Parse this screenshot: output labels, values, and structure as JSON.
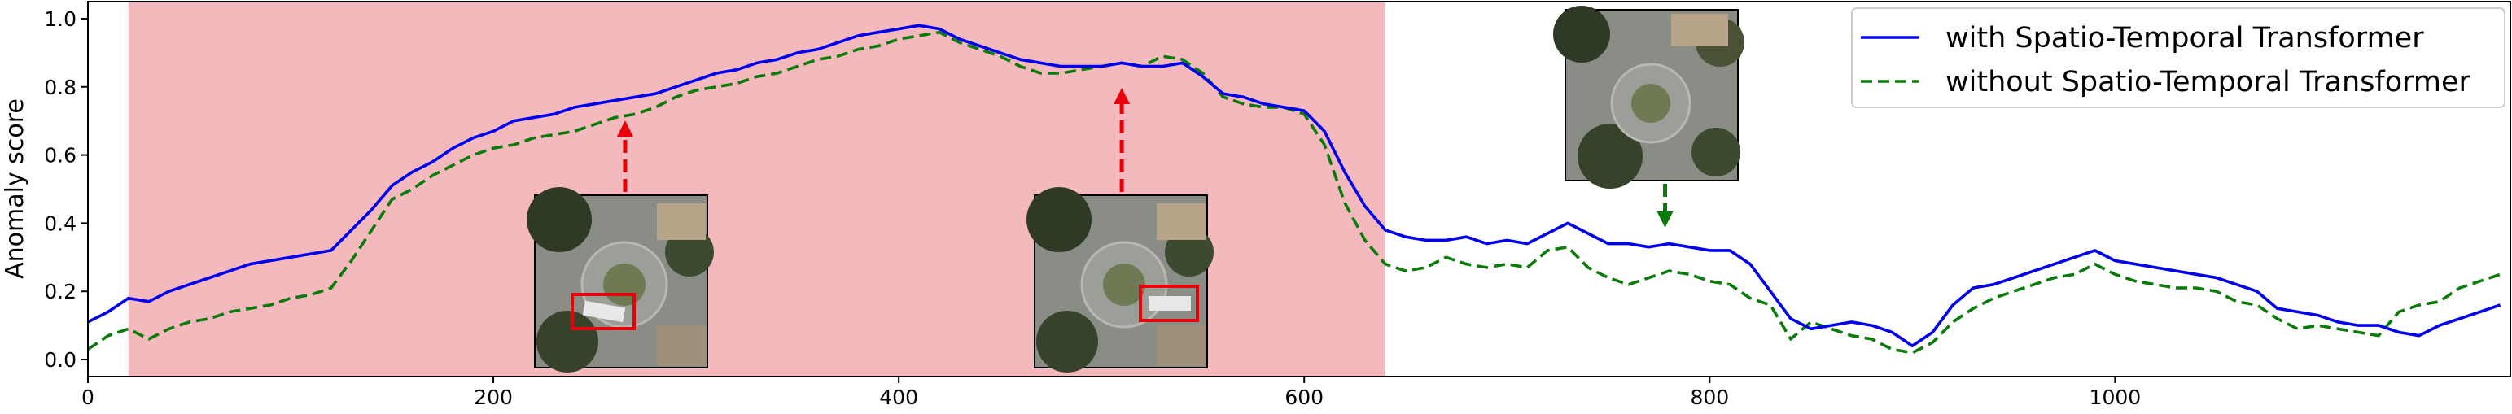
{
  "chart_data": {
    "type": "line",
    "title": "",
    "xlabel": "",
    "ylabel": "Anomaly score",
    "xlim": [
      0,
      1195
    ],
    "ylim": [
      -0.05,
      1.05
    ],
    "xticks": [
      0,
      200,
      400,
      600,
      800,
      1000
    ],
    "yticks": [
      0.0,
      0.2,
      0.4,
      0.6,
      0.8,
      1.0
    ],
    "xtick_labels": [
      "0",
      "200",
      "400",
      "600",
      "800",
      "1000"
    ],
    "ytick_labels": [
      "0.0",
      "0.2",
      "0.4",
      "0.6",
      "0.8",
      "1.0"
    ],
    "grid": false,
    "legend_position": "top-right",
    "anomaly_region": {
      "x_start": 20,
      "x_end": 640,
      "color": "#f4b9bd"
    },
    "series": [
      {
        "name": "with Spatio-Temporal Transformer",
        "color": "#0000ee",
        "style": "solid",
        "x": [
          0,
          10,
          20,
          30,
          40,
          50,
          60,
          70,
          80,
          90,
          100,
          110,
          120,
          130,
          140,
          150,
          160,
          170,
          180,
          190,
          200,
          210,
          220,
          230,
          240,
          250,
          260,
          270,
          280,
          290,
          300,
          310,
          320,
          330,
          340,
          350,
          360,
          370,
          380,
          390,
          400,
          410,
          420,
          430,
          440,
          450,
          460,
          470,
          480,
          490,
          500,
          510,
          520,
          530,
          540,
          550,
          560,
          570,
          580,
          590,
          600,
          610,
          620,
          630,
          640,
          650,
          660,
          670,
          680,
          690,
          700,
          710,
          720,
          730,
          740,
          750,
          760,
          770,
          780,
          790,
          800,
          810,
          820,
          830,
          840,
          850,
          860,
          870,
          880,
          890,
          900,
          910,
          920,
          930,
          940,
          950,
          960,
          970,
          980,
          990,
          1000,
          1010,
          1020,
          1030,
          1040,
          1050,
          1060,
          1070,
          1080,
          1090,
          1100,
          1110,
          1120,
          1130,
          1140,
          1150,
          1160,
          1170,
          1180,
          1190
        ],
        "values": [
          0.11,
          0.14,
          0.18,
          0.17,
          0.2,
          0.22,
          0.24,
          0.26,
          0.28,
          0.29,
          0.3,
          0.31,
          0.32,
          0.38,
          0.44,
          0.51,
          0.55,
          0.58,
          0.62,
          0.65,
          0.67,
          0.7,
          0.71,
          0.72,
          0.74,
          0.75,
          0.76,
          0.77,
          0.78,
          0.8,
          0.82,
          0.84,
          0.85,
          0.87,
          0.88,
          0.9,
          0.91,
          0.93,
          0.95,
          0.96,
          0.97,
          0.98,
          0.97,
          0.94,
          0.92,
          0.9,
          0.88,
          0.87,
          0.86,
          0.86,
          0.86,
          0.87,
          0.86,
          0.86,
          0.87,
          0.83,
          0.78,
          0.77,
          0.75,
          0.74,
          0.73,
          0.67,
          0.55,
          0.45,
          0.38,
          0.36,
          0.35,
          0.35,
          0.36,
          0.34,
          0.35,
          0.34,
          0.37,
          0.4,
          0.37,
          0.34,
          0.34,
          0.33,
          0.34,
          0.33,
          0.32,
          0.32,
          0.28,
          0.2,
          0.12,
          0.09,
          0.1,
          0.11,
          0.1,
          0.08,
          0.04,
          0.08,
          0.16,
          0.21,
          0.22,
          0.24,
          0.26,
          0.28,
          0.3,
          0.32,
          0.29,
          0.28,
          0.27,
          0.26,
          0.25,
          0.24,
          0.22,
          0.2,
          0.15,
          0.14,
          0.13,
          0.11,
          0.1,
          0.1,
          0.08,
          0.07,
          0.1,
          0.12,
          0.14,
          0.16
        ]
      },
      {
        "name": "without Spatio-Temporal Transformer",
        "color": "#0a7a0a",
        "style": "dashed",
        "x": [
          0,
          10,
          20,
          30,
          40,
          50,
          60,
          70,
          80,
          90,
          100,
          110,
          120,
          130,
          140,
          150,
          160,
          170,
          180,
          190,
          200,
          210,
          220,
          230,
          240,
          250,
          260,
          270,
          280,
          290,
          300,
          310,
          320,
          330,
          340,
          350,
          360,
          370,
          380,
          390,
          400,
          410,
          420,
          430,
          440,
          450,
          460,
          470,
          480,
          490,
          500,
          510,
          520,
          530,
          540,
          550,
          560,
          570,
          580,
          590,
          600,
          610,
          620,
          630,
          640,
          650,
          660,
          670,
          680,
          690,
          700,
          710,
          720,
          730,
          740,
          750,
          760,
          770,
          780,
          790,
          800,
          810,
          820,
          830,
          840,
          850,
          860,
          870,
          880,
          890,
          900,
          910,
          920,
          930,
          940,
          950,
          960,
          970,
          980,
          990,
          1000,
          1010,
          1020,
          1030,
          1040,
          1050,
          1060,
          1070,
          1080,
          1090,
          1100,
          1110,
          1120,
          1130,
          1140,
          1150,
          1160,
          1170,
          1180,
          1190
        ],
        "values": [
          0.03,
          0.07,
          0.09,
          0.06,
          0.09,
          0.11,
          0.12,
          0.14,
          0.15,
          0.16,
          0.18,
          0.19,
          0.21,
          0.29,
          0.38,
          0.47,
          0.5,
          0.54,
          0.57,
          0.6,
          0.62,
          0.63,
          0.65,
          0.66,
          0.67,
          0.69,
          0.71,
          0.72,
          0.74,
          0.77,
          0.79,
          0.8,
          0.81,
          0.83,
          0.84,
          0.86,
          0.88,
          0.89,
          0.91,
          0.92,
          0.94,
          0.95,
          0.96,
          0.93,
          0.91,
          0.89,
          0.86,
          0.84,
          0.84,
          0.85,
          0.86,
          0.87,
          0.86,
          0.89,
          0.88,
          0.84,
          0.77,
          0.75,
          0.74,
          0.74,
          0.72,
          0.63,
          0.46,
          0.35,
          0.28,
          0.26,
          0.27,
          0.3,
          0.28,
          0.27,
          0.28,
          0.27,
          0.32,
          0.33,
          0.27,
          0.24,
          0.22,
          0.24,
          0.26,
          0.25,
          0.23,
          0.22,
          0.18,
          0.16,
          0.06,
          0.11,
          0.09,
          0.07,
          0.06,
          0.03,
          0.02,
          0.05,
          0.11,
          0.15,
          0.18,
          0.2,
          0.22,
          0.24,
          0.25,
          0.28,
          0.25,
          0.23,
          0.22,
          0.21,
          0.21,
          0.2,
          0.17,
          0.16,
          0.12,
          0.09,
          0.1,
          0.09,
          0.08,
          0.07,
          0.14,
          0.16,
          0.17,
          0.21,
          0.23,
          0.25
        ]
      }
    ],
    "annotations": [
      {
        "id": "inset-1",
        "x_data": 265,
        "arrow": "up",
        "arrow_color": "#e8000b",
        "has_bbox": true,
        "bbox_color": "#e8000b"
      },
      {
        "id": "inset-2",
        "x_data": 510,
        "arrow": "up",
        "arrow_color": "#e8000b",
        "has_bbox": true,
        "bbox_color": "#e8000b"
      },
      {
        "id": "inset-3",
        "x_data": 778,
        "arrow": "down",
        "arrow_color": "#0a7a0a",
        "has_bbox": false
      }
    ]
  }
}
